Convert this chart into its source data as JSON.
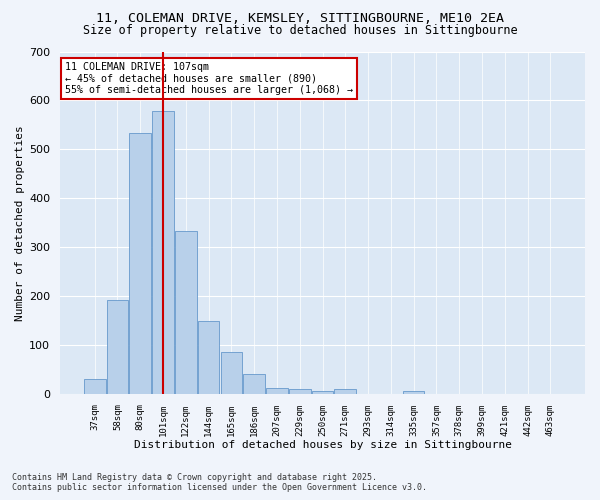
{
  "title_line1": "11, COLEMAN DRIVE, KEMSLEY, SITTINGBOURNE, ME10 2EA",
  "title_line2": "Size of property relative to detached houses in Sittingbourne",
  "xlabel": "Distribution of detached houses by size in Sittingbourne",
  "ylabel": "Number of detached properties",
  "categories": [
    "37sqm",
    "58sqm",
    "80sqm",
    "101sqm",
    "122sqm",
    "144sqm",
    "165sqm",
    "186sqm",
    "207sqm",
    "229sqm",
    "250sqm",
    "271sqm",
    "293sqm",
    "314sqm",
    "335sqm",
    "357sqm",
    "378sqm",
    "399sqm",
    "421sqm",
    "442sqm",
    "463sqm"
  ],
  "values": [
    30,
    192,
    534,
    578,
    333,
    148,
    85,
    40,
    13,
    10,
    5,
    10,
    0,
    0,
    5,
    0,
    0,
    0,
    0,
    0,
    0
  ],
  "bar_color": "#b8d0ea",
  "bar_edge_color": "#6699cc",
  "vline_x": 3,
  "vline_color": "#cc0000",
  "ylim": [
    0,
    700
  ],
  "yticks": [
    0,
    100,
    200,
    300,
    400,
    500,
    600,
    700
  ],
  "annotation_text": "11 COLEMAN DRIVE: 107sqm\n← 45% of detached houses are smaller (890)\n55% of semi-detached houses are larger (1,068) →",
  "annotation_box_color": "#cc0000",
  "annotation_box_fill": "#ffffff",
  "footer_line1": "Contains HM Land Registry data © Crown copyright and database right 2025.",
  "footer_line2": "Contains public sector information licensed under the Open Government Licence v3.0.",
  "fig_bg_color": "#f0f4fb",
  "plot_bg_color": "#dce8f5",
  "title_fontsize": 9.5,
  "bar_width": 0.95
}
